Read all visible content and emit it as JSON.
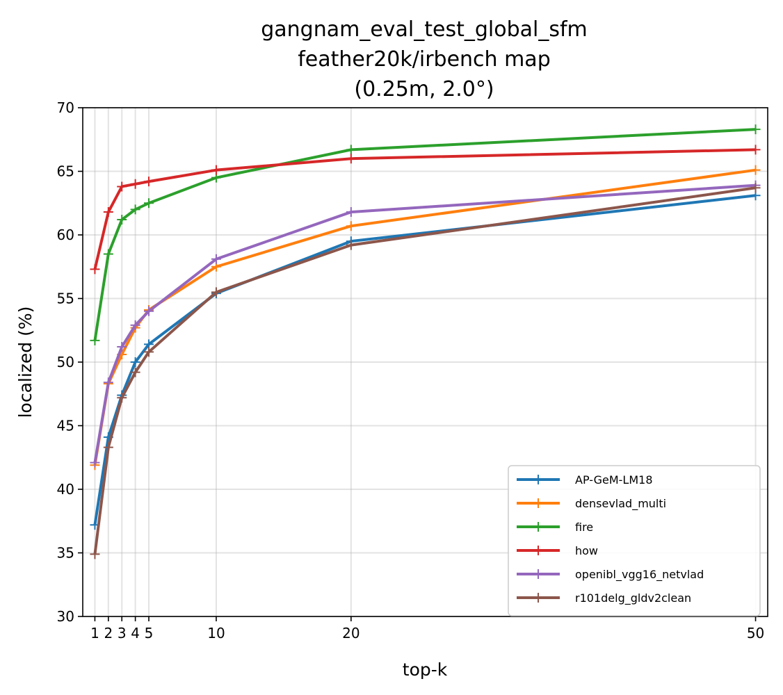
{
  "chart_data": {
    "type": "line",
    "title": [
      "gangnam_eval_test_global_sfm",
      "feather20k/irbench map",
      "(0.25m, 2.0°)"
    ],
    "xlabel": "top-k",
    "ylabel": "localized (%)",
    "x": [
      1,
      2,
      3,
      4,
      5,
      10,
      20,
      50
    ],
    "xticks": [
      1,
      2,
      3,
      4,
      5,
      10,
      20,
      50
    ],
    "xlim": [
      0.1,
      50.9
    ],
    "ylim": [
      30,
      70
    ],
    "yticks": [
      30,
      35,
      40,
      45,
      50,
      55,
      60,
      65,
      70
    ],
    "grid": true,
    "legend_position": "lower right",
    "series": [
      {
        "name": "AP-GeM-LM18",
        "color": "#1f77b4",
        "values": [
          37.2,
          44.1,
          47.4,
          50.0,
          51.4,
          55.4,
          59.5,
          63.1
        ]
      },
      {
        "name": "densevlad_multi",
        "color": "#ff7f0e",
        "values": [
          41.9,
          48.3,
          50.6,
          52.7,
          54.1,
          57.5,
          60.7,
          65.1
        ]
      },
      {
        "name": "fire",
        "color": "#2ca02c",
        "values": [
          51.7,
          58.5,
          61.2,
          62.0,
          62.5,
          64.5,
          66.7,
          68.3
        ]
      },
      {
        "name": "how",
        "color": "#d62728",
        "values": [
          57.3,
          61.8,
          63.8,
          64.0,
          64.2,
          65.1,
          66.0,
          66.7
        ]
      },
      {
        "name": "openibl_vgg16_netvlad",
        "color": "#9467bd",
        "values": [
          42.1,
          48.4,
          51.2,
          52.9,
          54.0,
          58.1,
          61.8,
          63.9
        ]
      },
      {
        "name": "r101delg_gldv2clean",
        "color": "#8c564b",
        "values": [
          34.9,
          43.3,
          47.2,
          49.2,
          50.8,
          55.5,
          59.2,
          63.7
        ]
      }
    ]
  }
}
